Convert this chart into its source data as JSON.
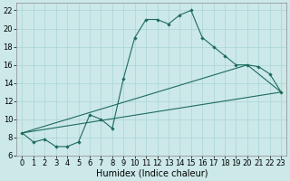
{
  "xlabel": "Humidex (Indice chaleur)",
  "bg_color": "#cce8e8",
  "line_color": "#1e6b5e",
  "grid_color": "#aad4d4",
  "xlim": [
    -0.5,
    23.5
  ],
  "ylim": [
    6,
    22.8
  ],
  "xticks": [
    0,
    1,
    2,
    3,
    4,
    5,
    6,
    7,
    8,
    9,
    10,
    11,
    12,
    13,
    14,
    15,
    16,
    17,
    18,
    19,
    20,
    21,
    22,
    23
  ],
  "yticks": [
    6,
    8,
    10,
    12,
    14,
    16,
    18,
    20,
    22
  ],
  "line1_x": [
    0,
    1,
    2,
    3,
    4,
    5,
    6,
    7,
    8,
    9,
    10,
    11,
    12,
    13,
    14,
    15,
    16,
    17,
    18,
    19,
    20,
    21,
    22,
    23
  ],
  "line1_y": [
    8.5,
    7.5,
    7.8,
    7.0,
    7.0,
    7.5,
    10.5,
    10.0,
    9.0,
    14.5,
    19.0,
    21.0,
    21.0,
    20.5,
    21.5,
    22.0,
    19.0,
    18.0,
    17.0,
    16.0,
    16.0,
    15.8,
    15.0,
    13.0
  ],
  "line2_x": [
    0,
    23
  ],
  "line2_y": [
    8.5,
    13.0
  ],
  "line3_x": [
    0,
    20,
    23
  ],
  "line3_y": [
    8.5,
    16.0,
    13.0
  ],
  "label_fontsize": 7,
  "tick_fontsize": 6
}
